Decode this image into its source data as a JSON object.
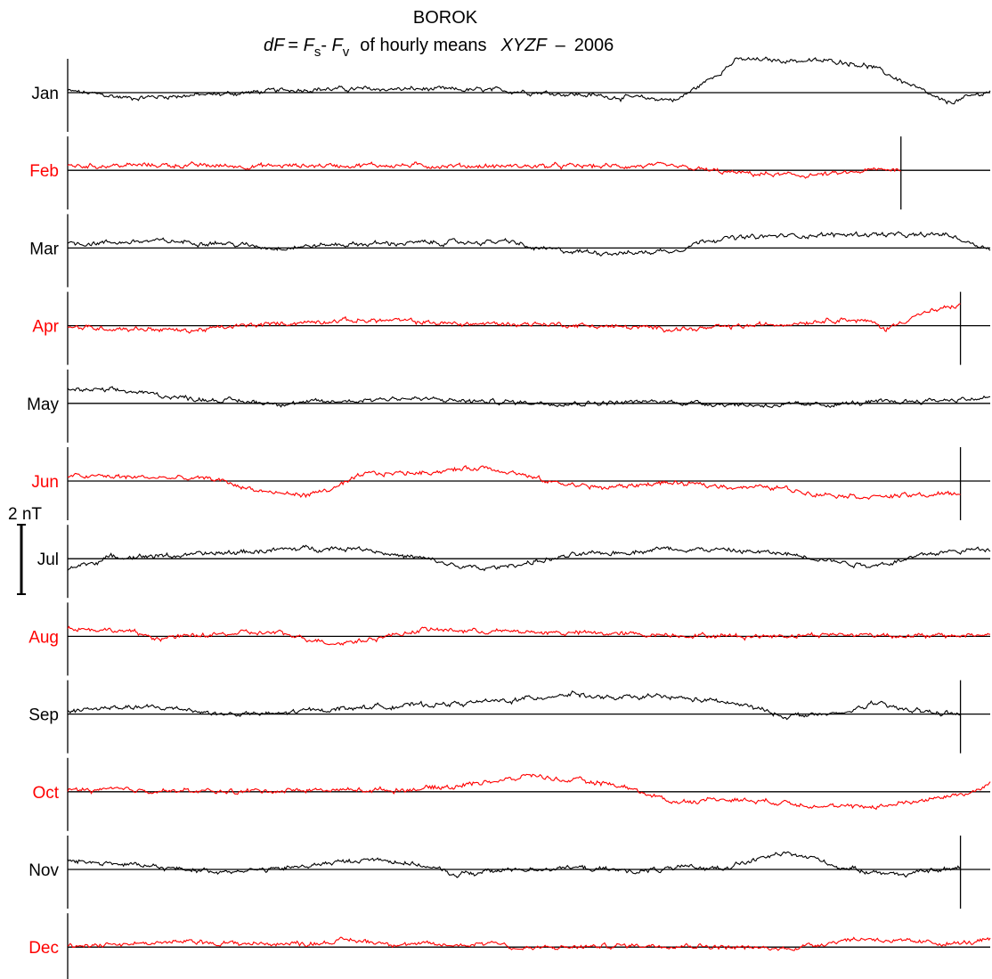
{
  "title": {
    "station": "BOROK",
    "dF_symbol": "dF",
    "equals": "= ",
    "Fs_base": "F",
    "Fs_sub": "s",
    "minus": "- ",
    "Fv_base": "F",
    "Fv_sub": "v",
    "of_hourly_means": "of hourly means",
    "components": "XYZF",
    "dash": "–",
    "year": "2006"
  },
  "scale_bar": {
    "label": "2 nT",
    "value_nT": 2
  },
  "colors": {
    "odd_month": "#000000",
    "even_month": "#ff0000"
  },
  "chart_data": {
    "type": "line",
    "units": "nT",
    "x_unit": "day of month",
    "baseline": 0,
    "panels": [
      {
        "label": "Jan",
        "color": "#000000",
        "days": 31,
        "knots": [
          [
            0,
            0.05
          ],
          [
            2,
            -0.15
          ],
          [
            5,
            -0.05
          ],
          [
            8,
            0.1
          ],
          [
            12,
            0.1
          ],
          [
            15,
            0.05
          ],
          [
            17,
            -0.05
          ],
          [
            19,
            -0.15
          ],
          [
            20.5,
            -0.2
          ],
          [
            21.5,
            0.35
          ],
          [
            22.5,
            0.95
          ],
          [
            26,
            0.9
          ],
          [
            27,
            0.75
          ],
          [
            28,
            0.35
          ],
          [
            29.5,
            -0.3
          ],
          [
            30,
            -0.2
          ],
          [
            31,
            0.05
          ]
        ]
      },
      {
        "label": "Feb",
        "color": "#ff0000",
        "days": 28,
        "knots": [
          [
            0,
            0.12
          ],
          [
            3,
            0.15
          ],
          [
            6,
            0.12
          ],
          [
            10,
            0.15
          ],
          [
            14,
            0.12
          ],
          [
            20,
            0.12
          ],
          [
            21,
            0.05
          ],
          [
            22,
            -0.05
          ],
          [
            23,
            -0.1
          ],
          [
            24.5,
            -0.15
          ],
          [
            26,
            -0.1
          ],
          [
            27,
            0.0
          ],
          [
            28,
            0.05
          ]
        ]
      },
      {
        "label": "Mar",
        "color": "#000000",
        "days": 31,
        "knots": [
          [
            0,
            0.12
          ],
          [
            3,
            0.2
          ],
          [
            5,
            0.15
          ],
          [
            7,
            0.0
          ],
          [
            9,
            0.1
          ],
          [
            12,
            0.15
          ],
          [
            15,
            0.18
          ],
          [
            15.5,
            0.0
          ],
          [
            17,
            -0.1
          ],
          [
            19,
            -0.15
          ],
          [
            20.5,
            -0.05
          ],
          [
            21.5,
            0.25
          ],
          [
            24,
            0.35
          ],
          [
            27,
            0.4
          ],
          [
            28.5,
            0.35
          ],
          [
            29.5,
            0.4
          ],
          [
            30.5,
            0.1
          ],
          [
            31,
            0.0
          ]
        ]
      },
      {
        "label": "Apr",
        "color": "#ff0000",
        "days": 30,
        "knots": [
          [
            0,
            -0.05
          ],
          [
            3,
            -0.1
          ],
          [
            4,
            -0.15
          ],
          [
            6,
            0.0
          ],
          [
            9,
            0.15
          ],
          [
            11,
            0.15
          ],
          [
            13,
            0.05
          ],
          [
            16,
            0.05
          ],
          [
            19,
            -0.05
          ],
          [
            21,
            -0.1
          ],
          [
            24,
            0.05
          ],
          [
            26,
            0.2
          ],
          [
            27,
            0.1
          ],
          [
            27.5,
            -0.1
          ],
          [
            28.5,
            0.3
          ],
          [
            30,
            0.6
          ]
        ]
      },
      {
        "label": "May",
        "color": "#000000",
        "days": 31,
        "knots": [
          [
            0,
            0.4
          ],
          [
            2,
            0.35
          ],
          [
            4,
            0.15
          ],
          [
            7,
            0.0
          ],
          [
            9,
            0.05
          ],
          [
            11,
            0.15
          ],
          [
            14,
            0.05
          ],
          [
            17,
            0.0
          ],
          [
            20,
            0.05
          ],
          [
            23,
            -0.05
          ],
          [
            25,
            -0.05
          ],
          [
            28,
            0.05
          ],
          [
            31,
            0.15
          ]
        ]
      },
      {
        "label": "Jun",
        "color": "#ff0000",
        "days": 30,
        "knots": [
          [
            0,
            0.15
          ],
          [
            3,
            0.1
          ],
          [
            5,
            0.05
          ],
          [
            6,
            -0.2
          ],
          [
            7,
            -0.35
          ],
          [
            8,
            -0.4
          ],
          [
            9,
            -0.2
          ],
          [
            10,
            0.2
          ],
          [
            12,
            0.25
          ],
          [
            14,
            0.4
          ],
          [
            15,
            0.25
          ],
          [
            16,
            0.0
          ],
          [
            18,
            -0.2
          ],
          [
            20,
            -0.05
          ],
          [
            22,
            -0.15
          ],
          [
            24,
            -0.2
          ],
          [
            25,
            -0.35
          ],
          [
            27,
            -0.45
          ],
          [
            29,
            -0.4
          ],
          [
            30,
            -0.35
          ]
        ]
      },
      {
        "label": "Jul",
        "color": "#000000",
        "days": 31,
        "knots": [
          [
            0,
            -0.3
          ],
          [
            1.5,
            0.05
          ],
          [
            4,
            0.1
          ],
          [
            6,
            0.2
          ],
          [
            8,
            0.3
          ],
          [
            10,
            0.3
          ],
          [
            11,
            0.1
          ],
          [
            12,
            0.0
          ],
          [
            13,
            -0.2
          ],
          [
            14,
            -0.3
          ],
          [
            16,
            -0.05
          ],
          [
            17,
            0.1
          ],
          [
            19,
            0.2
          ],
          [
            20,
            0.3
          ],
          [
            22,
            0.25
          ],
          [
            24,
            0.15
          ],
          [
            25,
            0.05
          ],
          [
            26,
            -0.1
          ],
          [
            27,
            -0.2
          ],
          [
            28,
            -0.05
          ],
          [
            29,
            0.15
          ],
          [
            31,
            0.3
          ]
        ]
      },
      {
        "label": "Aug",
        "color": "#ff0000",
        "days": 31,
        "knots": [
          [
            0,
            0.25
          ],
          [
            2,
            0.15
          ],
          [
            3,
            -0.05
          ],
          [
            5,
            0.05
          ],
          [
            6,
            0.1
          ],
          [
            7,
            0.1
          ],
          [
            8,
            -0.05
          ],
          [
            9,
            -0.2
          ],
          [
            10,
            -0.1
          ],
          [
            11,
            0.05
          ],
          [
            12,
            0.2
          ],
          [
            14,
            0.15
          ],
          [
            17,
            0.1
          ],
          [
            20,
            0.05
          ],
          [
            23,
            0.0
          ],
          [
            25,
            0.05
          ],
          [
            27,
            0.05
          ],
          [
            29,
            0.0
          ],
          [
            31,
            0.05
          ]
        ]
      },
      {
        "label": "Sep",
        "color": "#000000",
        "days": 30,
        "knots": [
          [
            0,
            0.1
          ],
          [
            2,
            0.2
          ],
          [
            4,
            0.15
          ],
          [
            5,
            0.0
          ],
          [
            6,
            0.0
          ],
          [
            7,
            0.0
          ],
          [
            8,
            0.1
          ],
          [
            10,
            0.2
          ],
          [
            13,
            0.3
          ],
          [
            15,
            0.4
          ],
          [
            17,
            0.6
          ],
          [
            18,
            0.45
          ],
          [
            20,
            0.5
          ],
          [
            22,
            0.35
          ],
          [
            23,
            0.2
          ],
          [
            24,
            -0.05
          ],
          [
            26,
            0.0
          ],
          [
            27,
            0.3
          ],
          [
            28,
            0.15
          ],
          [
            29,
            0.05
          ],
          [
            30,
            0.0
          ]
        ]
      },
      {
        "label": "Oct",
        "color": "#ff0000",
        "days": 31,
        "knots": [
          [
            0,
            0.05
          ],
          [
            2,
            0.05
          ],
          [
            5,
            0.0
          ],
          [
            8,
            0.05
          ],
          [
            11,
            0.05
          ],
          [
            13,
            0.15
          ],
          [
            14,
            0.3
          ],
          [
            15,
            0.35
          ],
          [
            15.5,
            0.5
          ],
          [
            16.5,
            0.35
          ],
          [
            18,
            0.25
          ],
          [
            19,
            0.1
          ],
          [
            19.5,
            -0.1
          ],
          [
            20.5,
            -0.3
          ],
          [
            22,
            -0.2
          ],
          [
            24,
            -0.3
          ],
          [
            26,
            -0.45
          ],
          [
            27.5,
            -0.4
          ],
          [
            29,
            -0.2
          ],
          [
            30.5,
            0.0
          ],
          [
            31,
            0.25
          ]
        ]
      },
      {
        "label": "Nov",
        "color": "#000000",
        "days": 30,
        "knots": [
          [
            0,
            0.25
          ],
          [
            2,
            0.15
          ],
          [
            3,
            0.05
          ],
          [
            5,
            -0.05
          ],
          [
            7,
            0.0
          ],
          [
            9,
            0.2
          ],
          [
            10.5,
            0.3
          ],
          [
            12,
            0.1
          ],
          [
            13,
            -0.15
          ],
          [
            15,
            0.0
          ],
          [
            17,
            0.05
          ],
          [
            19,
            -0.05
          ],
          [
            21,
            0.05
          ],
          [
            22,
            0.05
          ],
          [
            23,
            0.25
          ],
          [
            24,
            0.45
          ],
          [
            25,
            0.35
          ],
          [
            26,
            0.05
          ],
          [
            28,
            -0.15
          ],
          [
            29,
            -0.05
          ],
          [
            30,
            0.05
          ]
        ]
      },
      {
        "label": "Dec",
        "color": "#ff0000",
        "days": 31,
        "knots": [
          [
            0,
            0.05
          ],
          [
            2,
            0.1
          ],
          [
            4,
            0.15
          ],
          [
            6,
            0.1
          ],
          [
            8,
            0.1
          ],
          [
            9.5,
            0.2
          ],
          [
            11,
            0.1
          ],
          [
            13,
            0.05
          ],
          [
            14.5,
            0.15
          ],
          [
            15,
            -0.05
          ],
          [
            17,
            0.0
          ],
          [
            19,
            0.05
          ],
          [
            21,
            0.05
          ],
          [
            22,
            0.0
          ],
          [
            24,
            -0.05
          ],
          [
            25,
            0.05
          ],
          [
            26,
            0.2
          ],
          [
            27,
            0.25
          ],
          [
            28,
            0.15
          ],
          [
            30,
            0.1
          ],
          [
            31,
            0.2
          ]
        ]
      }
    ]
  }
}
